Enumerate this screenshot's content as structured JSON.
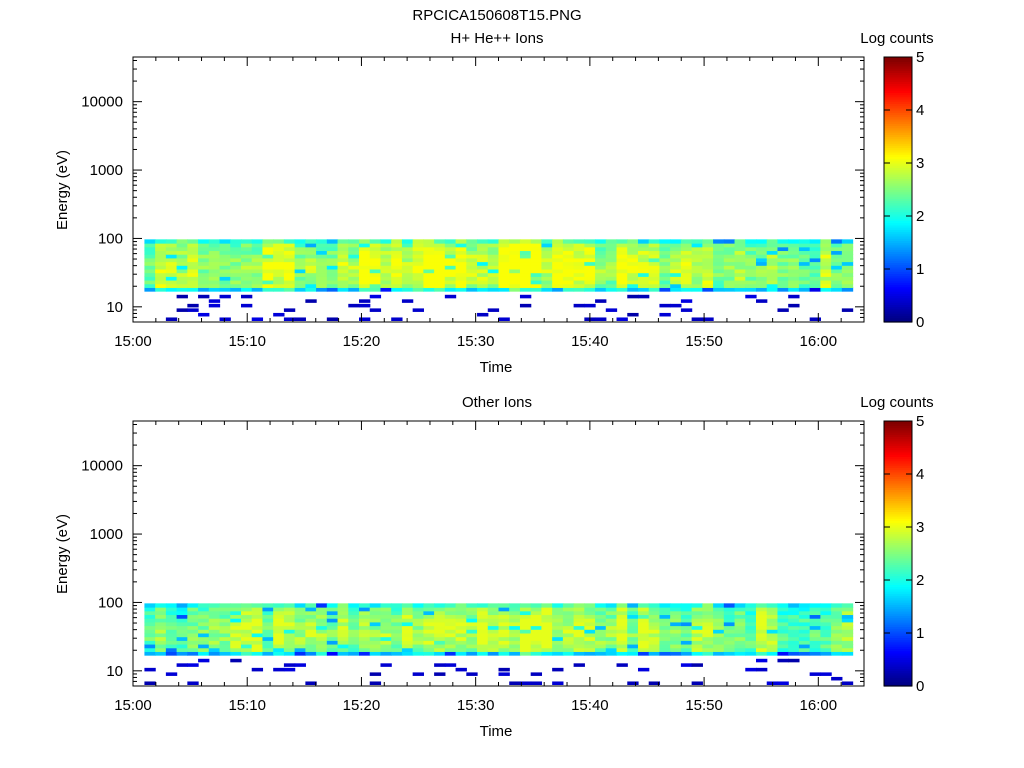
{
  "figure_title": "RPCICA150608T15.PNG",
  "chart_data": [
    {
      "type": "heatmap",
      "title": "H+ He++ Ions",
      "xlabel": "Time",
      "ylabel": "Energy (eV)",
      "y_scale": "log",
      "ylim": [
        6,
        45000
      ],
      "y_ticks": [
        10,
        100,
        1000,
        10000
      ],
      "y_tick_labels": [
        "10",
        "100",
        "1000",
        "10000"
      ],
      "x_range": [
        "15:00",
        "16:04"
      ],
      "x_ticks": [
        "15:00",
        "15:10",
        "15:20",
        "15:30",
        "15:40",
        "15:50",
        "16:00"
      ],
      "data_start": "15:01",
      "data_end": "16:03",
      "colorbar": {
        "label": "Log counts",
        "range": [
          0,
          5
        ],
        "ticks": [
          "0",
          "1",
          "2",
          "3",
          "4",
          "5"
        ]
      },
      "data_summary": {
        "energy_band_eV": [
          17,
          97
        ],
        "typical_log_counts": [
          1.8,
          2.6
        ],
        "peak_log_counts": 3.1,
        "sparse_low_energy_eV": [
          6,
          15
        ],
        "sparse_log_counts": 0.2
      },
      "seed": 1
    },
    {
      "type": "heatmap",
      "title": "Other Ions",
      "xlabel": "Time",
      "ylabel": "Energy (eV)",
      "y_scale": "log",
      "ylim": [
        6,
        45000
      ],
      "y_ticks": [
        10,
        100,
        1000,
        10000
      ],
      "y_tick_labels": [
        "10",
        "100",
        "1000",
        "10000"
      ],
      "x_range": [
        "15:00",
        "16:04"
      ],
      "x_ticks": [
        "15:00",
        "15:10",
        "15:20",
        "15:30",
        "15:40",
        "15:50",
        "16:00"
      ],
      "data_start": "15:01",
      "data_end": "16:03",
      "colorbar": {
        "label": "Log counts",
        "range": [
          0,
          5
        ],
        "ticks": [
          "0",
          "1",
          "2",
          "3",
          "4",
          "5"
        ]
      },
      "data_summary": {
        "energy_band_eV": [
          17,
          97
        ],
        "typical_log_counts": [
          1.6,
          2.5
        ],
        "peak_log_counts": 3.0,
        "sparse_low_energy_eV": [
          6,
          15
        ],
        "sparse_log_counts": 0.2
      },
      "seed": 7
    }
  ]
}
